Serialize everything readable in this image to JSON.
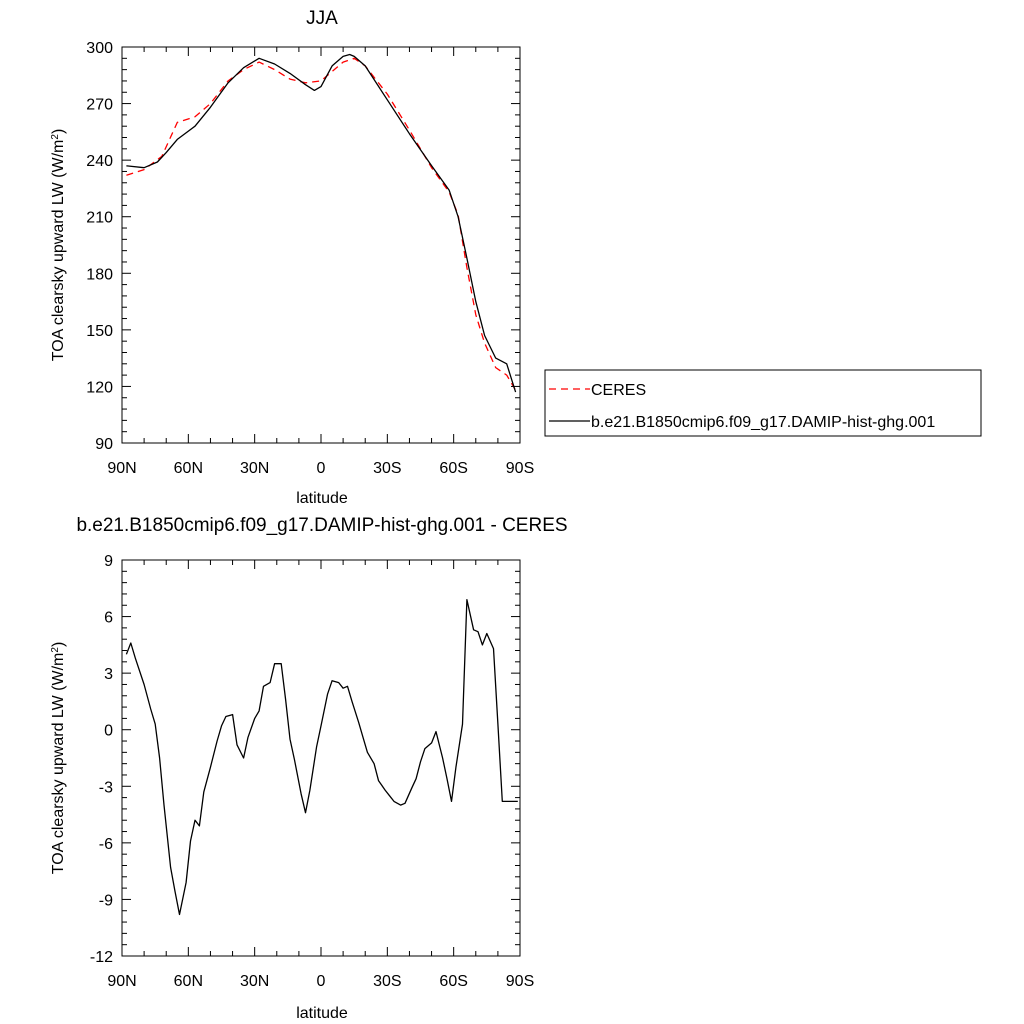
{
  "chart_data": [
    {
      "type": "line",
      "title": "JJA",
      "xlabel": "latitude",
      "ylabel": "TOA clearsky upward LW (W/m²)",
      "ylabel_main": "TOA clearsky upward LW (W/m",
      "ylabel_sup": "2",
      "ylabel_close": ")",
      "xlim": [
        90,
        -90
      ],
      "ylim": [
        90,
        300
      ],
      "xticks": [
        90,
        60,
        30,
        0,
        -30,
        -60,
        -90
      ],
      "xtick_labels": [
        "90N",
        "60N",
        "30N",
        "0",
        "30S",
        "60S",
        "90S"
      ],
      "yticks": [
        90,
        120,
        150,
        180,
        210,
        240,
        270,
        300
      ],
      "ytick_labels": [
        "90",
        "120",
        "150",
        "180",
        "210",
        "240",
        "270",
        "300"
      ],
      "grid": false,
      "legend_position": "right",
      "series": [
        {
          "name": "CERES",
          "color": "#ff0000",
          "dash": "dashed",
          "x": [
            88,
            80,
            72,
            65,
            57,
            50,
            42,
            35,
            28,
            21,
            14,
            7,
            0,
            -5,
            -10,
            -15,
            -20,
            -30,
            -40,
            -50,
            -58,
            -62,
            -66,
            -70,
            -74,
            -79,
            -84,
            -88
          ],
          "y": [
            232,
            235,
            242,
            260,
            263,
            270,
            282,
            288,
            292,
            288,
            283,
            281,
            282,
            287,
            292,
            294,
            290,
            275,
            256,
            236,
            223,
            211,
            183,
            158,
            143,
            130,
            126,
            118
          ]
        },
        {
          "name": "b.e21.B1850cmip6.f09_g17.DAMIP-hist-ghg.001",
          "color": "#000000",
          "dash": "solid",
          "x": [
            88,
            80,
            74,
            70,
            65,
            57,
            50,
            42,
            35,
            28,
            21,
            14,
            7,
            3,
            0,
            -5,
            -10,
            -13,
            -15,
            -20,
            -30,
            -40,
            -50,
            -58,
            -62,
            -66,
            -70,
            -74,
            -79,
            -84,
            -88
          ],
          "y": [
            237,
            236,
            239,
            244,
            251,
            258,
            268,
            281,
            289,
            294,
            291,
            286,
            280,
            277,
            279,
            290,
            295,
            296,
            295,
            290,
            272,
            254,
            237,
            224,
            210,
            188,
            165,
            147,
            135,
            132,
            117
          ]
        }
      ]
    },
    {
      "type": "line",
      "title": "b.e21.B1850cmip6.f09_g17.DAMIP-hist-ghg.001 - CERES",
      "xlabel": "latitude",
      "ylabel": "TOA clearsky upward LW (W/m²)",
      "ylabel_main": "TOA clearsky upward LW (W/m",
      "ylabel_sup": "2",
      "ylabel_close": ")",
      "xlim": [
        90,
        -90
      ],
      "ylim": [
        -12,
        9
      ],
      "xticks": [
        90,
        60,
        30,
        0,
        -30,
        -60,
        -90
      ],
      "xtick_labels": [
        "90N",
        "60N",
        "30N",
        "0",
        "30S",
        "60S",
        "90S"
      ],
      "yticks": [
        -12,
        -9,
        -6,
        -3,
        0,
        3,
        6,
        9
      ],
      "ytick_labels": [
        "-12",
        "-9",
        "-6",
        "-3",
        "0",
        "3",
        "6",
        "9"
      ],
      "grid": false,
      "series": [
        {
          "color": "#000000",
          "dash": "solid",
          "x": [
            88,
            86,
            84,
            80,
            77,
            75,
            73,
            71,
            68,
            66,
            64,
            61,
            59,
            57,
            55,
            53,
            50,
            47,
            45,
            43,
            40,
            38,
            35,
            33,
            30,
            28,
            26,
            23,
            21,
            18,
            16,
            14,
            12,
            9,
            7,
            5,
            2,
            0,
            -3,
            -5,
            -8,
            -10,
            -12,
            -14,
            -17,
            -19,
            -21,
            -24,
            -26,
            -29,
            -31,
            -33,
            -36,
            -38,
            -41,
            -43,
            -45,
            -47,
            -50,
            -52,
            -55,
            -57,
            -59,
            -61,
            -64,
            -66,
            -69,
            -71,
            -73,
            -75,
            -78,
            -80,
            -82,
            -84,
            -86,
            -89
          ],
          "y": [
            4.0,
            4.6,
            3.8,
            2.4,
            1.1,
            0.3,
            -1.5,
            -4.0,
            -7.3,
            -8.6,
            -9.8,
            -8.1,
            -5.9,
            -4.8,
            -5.1,
            -3.3,
            -2.0,
            -0.6,
            0.2,
            0.7,
            0.8,
            -0.8,
            -1.5,
            -0.4,
            0.6,
            1.0,
            2.3,
            2.5,
            3.5,
            3.5,
            1.6,
            -0.5,
            -1.6,
            -3.4,
            -4.4,
            -3.2,
            -0.9,
            0.2,
            1.9,
            2.6,
            2.5,
            2.2,
            2.3,
            1.5,
            0.4,
            -0.4,
            -1.2,
            -1.8,
            -2.7,
            -3.2,
            -3.5,
            -3.8,
            -4.0,
            -3.9,
            -3.1,
            -2.6,
            -1.7,
            -1.0,
            -0.7,
            -0.1,
            -1.5,
            -2.6,
            -3.8,
            -2.0,
            0.3,
            6.9,
            5.3,
            5.2,
            4.5,
            5.1,
            4.3,
            0.3,
            -3.8,
            -3.8,
            -3.8,
            -3.8
          ]
        }
      ]
    }
  ]
}
